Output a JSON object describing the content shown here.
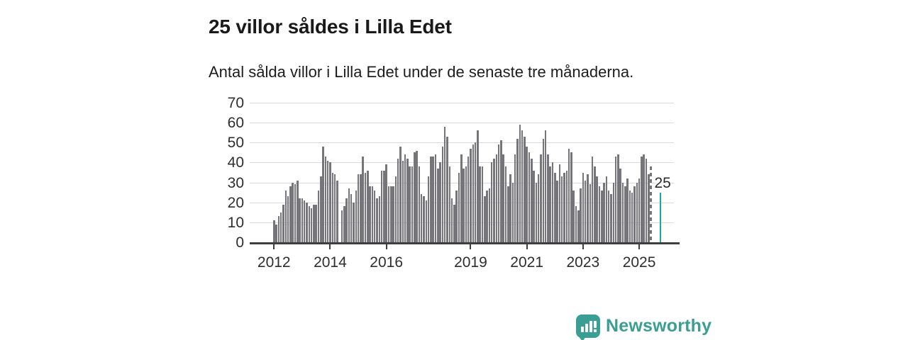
{
  "header": {
    "title": "25 villor såldes i Lilla Edet",
    "subtitle": "Antal sålda villor i Lilla Edet under de senaste tre månaderna."
  },
  "chart_data": {
    "type": "bar",
    "title": "25 villor såldes i Lilla Edet",
    "subtitle": "Antal sålda villor i Lilla Edet under de senaste tre månaderna.",
    "x_start": "2012-01",
    "x_unit": "month",
    "values": [
      11,
      9,
      13,
      15,
      19,
      26,
      23,
      28,
      30,
      29,
      31,
      22,
      22,
      21,
      20,
      18,
      17,
      19,
      19,
      26,
      33,
      48,
      43,
      41,
      40,
      35,
      34,
      31,
      null,
      16,
      18,
      22,
      27,
      24,
      20,
      26,
      34,
      34,
      43,
      35,
      36,
      28,
      28,
      26,
      22,
      23,
      36,
      36,
      39,
      28,
      28,
      28,
      33,
      42,
      48,
      41,
      44,
      42,
      38,
      38,
      45,
      46,
      38,
      24,
      23,
      21,
      33,
      43,
      43,
      44,
      37,
      40,
      48,
      58,
      53,
      38,
      22,
      19,
      26,
      35,
      44,
      37,
      38,
      43,
      47,
      49,
      50,
      56,
      38,
      38,
      23,
      26,
      27,
      40,
      42,
      44,
      49,
      51,
      44,
      38,
      28,
      34,
      30,
      44,
      52,
      59,
      56,
      53,
      48,
      45,
      42,
      36,
      30,
      34,
      44,
      52,
      56,
      44,
      38,
      40,
      35,
      31,
      39,
      33,
      35,
      36,
      47,
      45,
      26,
      18,
      16,
      27,
      35,
      31,
      34,
      29,
      43,
      38,
      33,
      28,
      26,
      30,
      33,
      26,
      24,
      30,
      43,
      44,
      37,
      30,
      28,
      32,
      26,
      25,
      28,
      30,
      32,
      43,
      44,
      42,
      34,
      38,
      null,
      null,
      null,
      25
    ],
    "dashed_index": 161,
    "highlight_index": 165,
    "highlight_label": "25",
    "ylim": [
      0,
      70
    ],
    "yticks": [
      0,
      10,
      20,
      30,
      40,
      50,
      60,
      70
    ],
    "xticks": [
      {
        "label": "2012",
        "month_index": 0
      },
      {
        "label": "2014",
        "month_index": 24
      },
      {
        "label": "2016",
        "month_index": 48
      },
      {
        "label": "2019",
        "month_index": 84
      },
      {
        "label": "2021",
        "month_index": 108
      },
      {
        "label": "2023",
        "month_index": 132
      },
      {
        "label": "2025",
        "month_index": 156
      }
    ],
    "grid": true,
    "legend": false,
    "colors": {
      "bar": "#76767a",
      "highlight": "#1ca89c",
      "grid": "#d9d9d9",
      "axis": "#3f3f3f"
    }
  },
  "footer": {
    "brand": "Newsworthy",
    "brand_color": "#3a9e94",
    "logo_icon": "bar-chart-speech-bubble-icon"
  }
}
